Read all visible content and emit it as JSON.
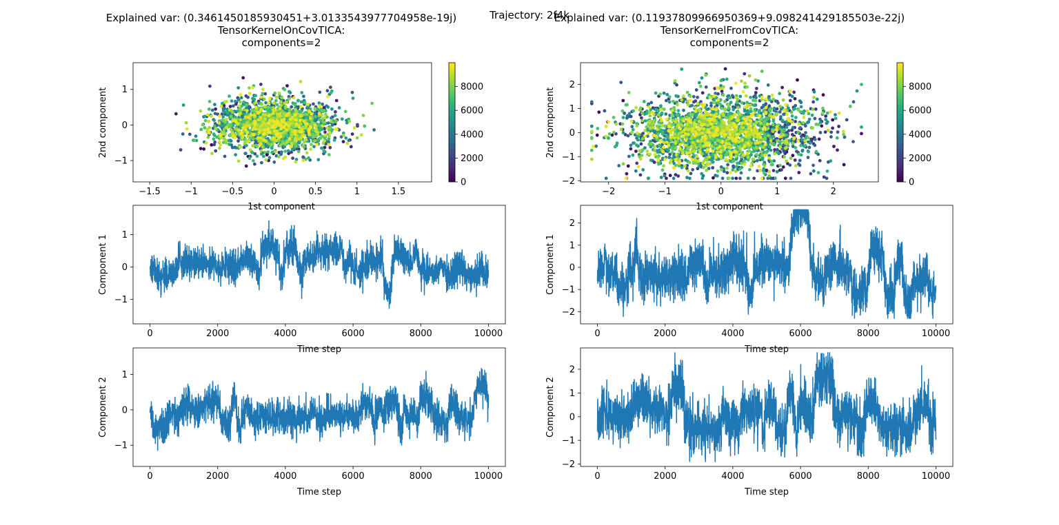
{
  "figure": {
    "suptitle": "Trajectory: 2f4k"
  },
  "colorbar": {
    "ticks": [
      0,
      2000,
      4000,
      6000,
      8000
    ],
    "range": [
      0,
      10000
    ],
    "colormap": "viridis"
  },
  "series_color": "#1f77b4",
  "chart_data": [
    {
      "id": "scatter_left",
      "type": "scatter",
      "title_lines": [
        "Explained var: (0.3461450185930451+3.0133543977704958e-19j)",
        "TensorKernelOnCovTICA:",
        "components=2"
      ],
      "xlabel": "1st component",
      "ylabel": "2nd component",
      "xlim": [
        -1.7,
        1.9
      ],
      "ylim": [
        -1.6,
        1.75
      ],
      "xticks": [
        -1.5,
        -1.0,
        -0.5,
        0.0,
        0.5,
        1.0,
        1.5
      ],
      "yticks": [
        -1,
        0,
        1
      ],
      "color_by": "time step",
      "n_points": 1800,
      "spread": {
        "x_sd": 0.38,
        "y_sd": 0.38,
        "x_range": [
          -1.6,
          1.8
        ],
        "y_range": [
          -1.45,
          1.6
        ]
      }
    },
    {
      "id": "scatter_right",
      "type": "scatter",
      "title_lines": [
        "Explained var: (0.11937809966950369+9.098241429185503e-22j)",
        "TensorKernelFromCovTICA:",
        "components=2"
      ],
      "xlabel": "1st component",
      "ylabel": "2nd component",
      "xlim": [
        -2.5,
        2.8
      ],
      "ylim": [
        -2.05,
        2.9
      ],
      "xticks": [
        -2,
        -1,
        0,
        1,
        2
      ],
      "yticks": [
        -2,
        -1,
        0,
        1,
        2
      ],
      "color_by": "time step",
      "n_points": 2400,
      "spread": {
        "x_sd": 0.85,
        "y_sd": 0.85,
        "x_range": [
          -2.3,
          2.5
        ],
        "y_range": [
          -1.9,
          2.7
        ]
      }
    },
    {
      "id": "ts_left_1",
      "type": "line",
      "xlabel": "Time step",
      "ylabel": "Component 1",
      "xlim": [
        -500,
        10500
      ],
      "ylim": [
        -1.75,
        1.9
      ],
      "xticks": [
        0,
        2000,
        4000,
        6000,
        8000,
        10000
      ],
      "yticks": [
        -1,
        0,
        1
      ],
      "x_range": [
        0,
        10000
      ],
      "value_range": [
        -1.6,
        1.8
      ],
      "noise_sd": 0.45
    },
    {
      "id": "ts_right_1",
      "type": "line",
      "xlabel": "Time step",
      "ylabel": "Component 1",
      "xlim": [
        -500,
        10500
      ],
      "ylim": [
        -2.55,
        2.8
      ],
      "xticks": [
        0,
        2000,
        4000,
        6000,
        8000,
        10000
      ],
      "yticks": [
        -2,
        -1,
        0,
        1,
        2
      ],
      "x_range": [
        0,
        10000
      ],
      "value_range": [
        -2.3,
        2.6
      ],
      "noise_sd": 0.95
    },
    {
      "id": "ts_left_2",
      "type": "line",
      "xlabel": "Time step",
      "ylabel": "Component 2",
      "xlim": [
        -500,
        10500
      ],
      "ylim": [
        -1.6,
        1.75
      ],
      "xticks": [
        0,
        2000,
        4000,
        6000,
        8000,
        10000
      ],
      "yticks": [
        -1,
        0,
        1
      ],
      "x_range": [
        0,
        10000
      ],
      "value_range": [
        -1.45,
        1.6
      ],
      "noise_sd": 0.42
    },
    {
      "id": "ts_right_2",
      "type": "line",
      "xlabel": "Time step",
      "ylabel": "Component 2",
      "xlim": [
        -500,
        10500
      ],
      "ylim": [
        -2.1,
        2.9
      ],
      "xticks": [
        0,
        2000,
        4000,
        6000,
        8000,
        10000
      ],
      "yticks": [
        -2,
        -1,
        0,
        1,
        2
      ],
      "x_range": [
        0,
        10000
      ],
      "value_range": [
        -1.9,
        2.7
      ],
      "noise_sd": 0.95
    }
  ]
}
